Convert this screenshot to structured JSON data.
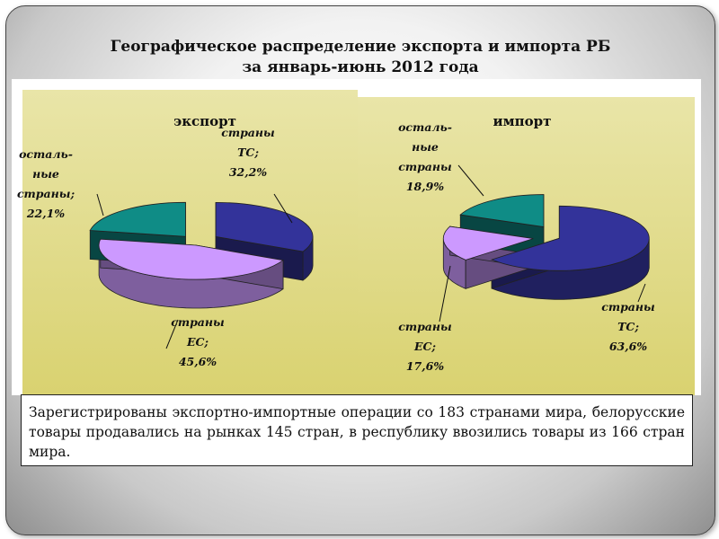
{
  "title": {
    "line1": "Географическое распределение экспорта и импорта РБ",
    "line2": "за январь-июнь 2012 года"
  },
  "chart_data": [
    {
      "type": "pie",
      "title": "экспорт",
      "slices": [
        {
          "name": "страны ТС",
          "value": 32.2,
          "label": [
            "страны",
            "ТС;",
            "32,2%"
          ],
          "color": "#33339a"
        },
        {
          "name": "страны ЕС",
          "value": 45.6,
          "label": [
            "страны",
            "ЕС;",
            "45,6%"
          ],
          "color": "#cc99ff"
        },
        {
          "name": "остальные страны",
          "value": 22.1,
          "label": [
            "осталь-",
            "ные",
            "страны;",
            "22,1%"
          ],
          "color": "#0f8c86"
        }
      ]
    },
    {
      "type": "pie",
      "title": "импорт",
      "slices": [
        {
          "name": "страны ТС",
          "value": 63.6,
          "label": [
            "страны",
            "ТС;",
            "63,6%"
          ],
          "color": "#33339a"
        },
        {
          "name": "страны ЕС",
          "value": 17.6,
          "label": [
            "страны",
            "ЕС;",
            "17,6%"
          ],
          "color": "#cc99ff"
        },
        {
          "name": "остальные страны",
          "value": 18.9,
          "label": [
            "осталь-",
            "ные",
            "страны",
            "18,9%"
          ],
          "color": "#0f8c86"
        }
      ]
    }
  ],
  "note": {
    "text": "Зарегистрированы экспортно-импортные операции со 183 странами мира, белорусские товары продавались на рынках 145 стран, в республику ввозились товары из 166 стран мира."
  }
}
